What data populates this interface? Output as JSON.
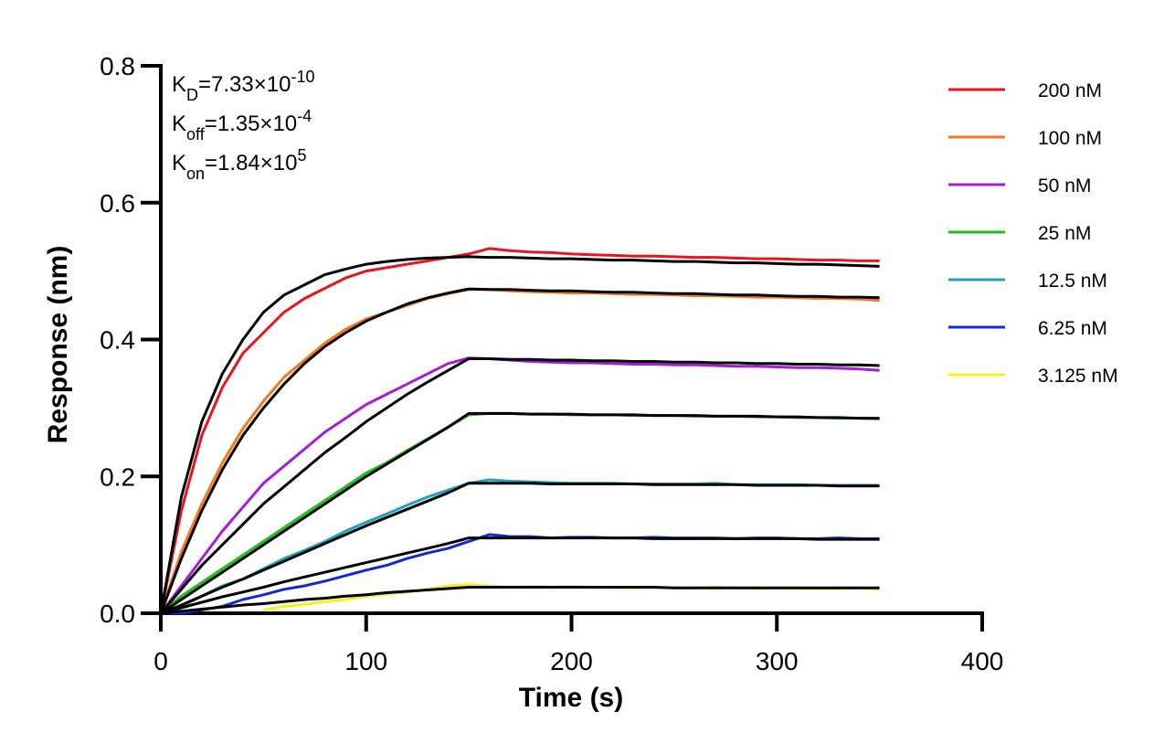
{
  "chart_data": {
    "type": "line",
    "xlabel": "Time (s)",
    "ylabel": "Response (nm)",
    "xlim": [
      0,
      400
    ],
    "xticks": [
      0,
      100,
      200,
      300,
      400
    ],
    "ylim": [
      0,
      0.8
    ],
    "yticks": [
      {
        "value": 0,
        "label": "0.0"
      },
      0.2,
      0.4,
      0.6,
      0.8
    ],
    "annotations": [
      {
        "main": "K",
        "sub": "D",
        "text": "=7.33×10",
        "sup": "-10"
      },
      {
        "main": "K",
        "sub": "off",
        "text": "=1.35×10",
        "sup": "-4"
      },
      {
        "main": "K",
        "sub": "on",
        "text": "=1.84×10",
        "sup": "5"
      }
    ],
    "x": [
      0,
      10,
      20,
      30,
      40,
      50,
      60,
      70,
      80,
      90,
      100,
      110,
      120,
      130,
      140,
      150,
      160,
      170,
      180,
      190,
      200,
      210,
      220,
      230,
      240,
      250,
      260,
      270,
      280,
      290,
      300,
      310,
      320,
      330,
      340,
      350
    ],
    "series": [
      {
        "name": "200 nM",
        "color": "#e8141e",
        "values": [
          0,
          0.15,
          0.26,
          0.33,
          0.38,
          0.41,
          0.44,
          0.46,
          0.475,
          0.49,
          0.5,
          0.505,
          0.51,
          0.515,
          0.52,
          0.525,
          0.533,
          0.53,
          0.528,
          0.527,
          0.525,
          0.524,
          0.523,
          0.522,
          0.522,
          0.521,
          0.52,
          0.52,
          0.519,
          0.518,
          0.518,
          0.517,
          0.516,
          0.516,
          0.515,
          0.515
        ]
      },
      {
        "name": "100 nM",
        "color": "#f47a20",
        "values": [
          0,
          0.09,
          0.16,
          0.22,
          0.27,
          0.31,
          0.345,
          0.37,
          0.395,
          0.415,
          0.43,
          0.44,
          0.45,
          0.46,
          0.467,
          0.473,
          0.473,
          0.471,
          0.47,
          0.469,
          0.468,
          0.468,
          0.467,
          0.466,
          0.466,
          0.465,
          0.464,
          0.464,
          0.463,
          0.462,
          0.462,
          0.461,
          0.46,
          0.46,
          0.459,
          0.457
        ]
      },
      {
        "name": "50 nM",
        "color": "#a21fd6",
        "values": [
          0,
          0.04,
          0.08,
          0.12,
          0.155,
          0.19,
          0.215,
          0.24,
          0.265,
          0.285,
          0.305,
          0.32,
          0.335,
          0.35,
          0.365,
          0.373,
          0.372,
          0.37,
          0.368,
          0.367,
          0.366,
          0.366,
          0.365,
          0.364,
          0.364,
          0.363,
          0.363,
          0.362,
          0.361,
          0.361,
          0.36,
          0.359,
          0.359,
          0.358,
          0.357,
          0.355
        ]
      },
      {
        "name": "25 nM",
        "color": "#1fbf1f",
        "values": [
          0,
          0.025,
          0.045,
          0.065,
          0.085,
          0.105,
          0.125,
          0.145,
          0.165,
          0.185,
          0.205,
          0.22,
          0.238,
          0.255,
          0.272,
          0.29,
          0.292,
          0.292,
          0.291,
          0.291,
          0.29,
          0.29,
          0.29,
          0.289,
          0.289,
          0.289,
          0.288,
          0.288,
          0.288,
          0.287,
          0.287,
          0.286,
          0.286,
          0.285,
          0.285,
          0.284
        ]
      },
      {
        "name": "12.5 nM",
        "color": "#1fa3b8",
        "values": [
          0,
          0.01,
          0.025,
          0.04,
          0.05,
          0.065,
          0.08,
          0.092,
          0.105,
          0.12,
          0.133,
          0.145,
          0.158,
          0.17,
          0.18,
          0.19,
          0.195,
          0.193,
          0.192,
          0.191,
          0.19,
          0.19,
          0.19,
          0.189,
          0.189,
          0.189,
          0.189,
          0.19,
          0.188,
          0.188,
          0.188,
          0.188,
          0.187,
          0.187,
          0.187,
          0.187
        ]
      },
      {
        "name": "6.25 nM",
        "color": "#1426d6",
        "values": [
          0,
          0,
          0.005,
          0.01,
          0.02,
          0.027,
          0.035,
          0.04,
          0.047,
          0.055,
          0.063,
          0.07,
          0.08,
          0.088,
          0.095,
          0.105,
          0.115,
          0.112,
          0.112,
          0.11,
          0.111,
          0.111,
          0.11,
          0.11,
          0.111,
          0.11,
          0.11,
          0.11,
          0.109,
          0.11,
          0.11,
          0.109,
          0.109,
          0.11,
          0.109,
          0.109
        ]
      },
      {
        "name": "3.125 nM",
        "color": "#f2f21a",
        "values": [
          null,
          null,
          null,
          null,
          null,
          0.005,
          0.01,
          0.013,
          0.017,
          0.02,
          0.025,
          0.028,
          0.031,
          0.035,
          0.04,
          0.042,
          0.04,
          0.038,
          0.039,
          0.038,
          0.039,
          0.038,
          0.038,
          0.037,
          0.038,
          0.037,
          0.037,
          0.038,
          0.037,
          0.036,
          0.037,
          0.036,
          0.036,
          0.036,
          0.037,
          0.035
        ]
      }
    ],
    "fits": [
      {
        "color": "#000000",
        "values": [
          0,
          0.17,
          0.28,
          0.35,
          0.4,
          0.44,
          0.465,
          0.48,
          0.495,
          0.503,
          0.51,
          0.514,
          0.517,
          0.519,
          0.52,
          0.521,
          0.52,
          0.52,
          0.519,
          0.518,
          0.518,
          0.517,
          0.516,
          0.516,
          0.515,
          0.514,
          0.514,
          0.513,
          0.512,
          0.512,
          0.511,
          0.51,
          0.51,
          0.509,
          0.508,
          0.507
        ]
      },
      {
        "color": "#000000",
        "values": [
          0,
          0.08,
          0.15,
          0.21,
          0.26,
          0.3,
          0.335,
          0.365,
          0.39,
          0.41,
          0.427,
          0.44,
          0.452,
          0.461,
          0.468,
          0.474,
          0.473,
          0.473,
          0.472,
          0.471,
          0.471,
          0.47,
          0.469,
          0.469,
          0.468,
          0.467,
          0.467,
          0.466,
          0.465,
          0.465,
          0.464,
          0.463,
          0.463,
          0.462,
          0.462,
          0.461
        ]
      },
      {
        "color": "#000000",
        "values": [
          0,
          0.035,
          0.07,
          0.1,
          0.13,
          0.16,
          0.185,
          0.21,
          0.235,
          0.257,
          0.28,
          0.3,
          0.32,
          0.338,
          0.355,
          0.372,
          0.372,
          0.371,
          0.371,
          0.37,
          0.37,
          0.369,
          0.369,
          0.368,
          0.368,
          0.367,
          0.367,
          0.366,
          0.366,
          0.365,
          0.365,
          0.364,
          0.364,
          0.363,
          0.363,
          0.362
        ]
      },
      {
        "color": "#000000",
        "values": [
          0,
          0.02,
          0.04,
          0.06,
          0.08,
          0.1,
          0.12,
          0.14,
          0.16,
          0.18,
          0.2,
          0.218,
          0.236,
          0.254,
          0.272,
          0.292,
          0.292,
          0.292,
          0.291,
          0.291,
          0.291,
          0.29,
          0.29,
          0.29,
          0.289,
          0.289,
          0.289,
          0.288,
          0.288,
          0.288,
          0.287,
          0.287,
          0.286,
          0.286,
          0.285,
          0.285
        ]
      },
      {
        "color": "#000000",
        "values": [
          0,
          0.012,
          0.025,
          0.038,
          0.05,
          0.063,
          0.076,
          0.089,
          0.102,
          0.115,
          0.128,
          0.14,
          0.152,
          0.164,
          0.176,
          0.19,
          0.19,
          0.19,
          0.19,
          0.189,
          0.189,
          0.189,
          0.189,
          0.189,
          0.188,
          0.188,
          0.188,
          0.188,
          0.188,
          0.187,
          0.187,
          0.187,
          0.187,
          0.186,
          0.186,
          0.186
        ]
      },
      {
        "color": "#000000",
        "values": [
          0,
          0.008,
          0.016,
          0.024,
          0.031,
          0.038,
          0.046,
          0.053,
          0.06,
          0.067,
          0.074,
          0.081,
          0.088,
          0.095,
          0.102,
          0.11,
          0.11,
          0.11,
          0.11,
          0.11,
          0.11,
          0.11,
          0.11,
          0.11,
          0.109,
          0.109,
          0.109,
          0.109,
          0.109,
          0.109,
          0.109,
          0.109,
          0.108,
          0.108,
          0.108,
          0.108
        ]
      },
      {
        "color": "#000000",
        "values": [
          0,
          0.003,
          0.006,
          0.009,
          0.012,
          0.014,
          0.017,
          0.02,
          0.022,
          0.025,
          0.027,
          0.03,
          0.032,
          0.034,
          0.036,
          0.038,
          0.038,
          0.038,
          0.038,
          0.038,
          0.038,
          0.038,
          0.038,
          0.038,
          0.038,
          0.037,
          0.037,
          0.037,
          0.037,
          0.037,
          0.037,
          0.037,
          0.037,
          0.037,
          0.037,
          0.037
        ]
      }
    ]
  }
}
